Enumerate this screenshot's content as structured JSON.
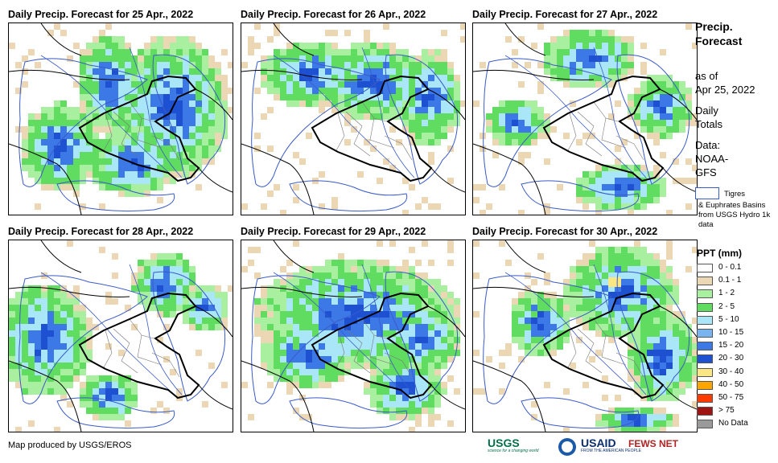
{
  "panels": [
    {
      "id": "p1",
      "title": "Daily Precip. Forecast for 25 Apr., 2022",
      "pattern": "north-east"
    },
    {
      "id": "p2",
      "title": "Daily Precip. Forecast for 26 Apr., 2022",
      "pattern": "north"
    },
    {
      "id": "p3",
      "title": "Daily Precip. Forecast for 27 Apr., 2022",
      "pattern": "sparse"
    },
    {
      "id": "p4",
      "title": "Daily Precip. Forecast for 28 Apr., 2022",
      "pattern": "west"
    },
    {
      "id": "p5",
      "title": "Daily Precip. Forecast for 29 Apr., 2022",
      "pattern": "broad"
    },
    {
      "id": "p6",
      "title": "Daily Precip. Forecast for 30 Apr., 2022",
      "pattern": "east"
    }
  ],
  "sidebar": {
    "title_line1": "Precip.",
    "title_line2": "Forecast",
    "asof_line1": "as of",
    "asof_line2": "Apr 25, 2022",
    "totals_line1": "Daily",
    "totals_line2": "Totals",
    "data_line1": "Data:",
    "data_line2": "NOAA-",
    "data_line3": "GFS"
  },
  "basin_legend": {
    "label1": "Tigres",
    "label2": "& Euphrates Basins from USGS Hydro 1k data",
    "color": "#3a5bc7"
  },
  "legend": {
    "title": "PPT (mm)",
    "classes": [
      {
        "label": "0 - 0.1",
        "color": "#ffffff"
      },
      {
        "label": "0.1 - 1",
        "color": "#ebd7b4"
      },
      {
        "label": "1 - 2",
        "color": "#a8f0a0"
      },
      {
        "label": "2 - 5",
        "color": "#60dc60"
      },
      {
        "label": "5 - 10",
        "color": "#a8e6f8"
      },
      {
        "label": "10 - 15",
        "color": "#78b4f0"
      },
      {
        "label": "15 - 20",
        "color": "#3c78e6"
      },
      {
        "label": "20 - 30",
        "color": "#1e50d2"
      },
      {
        "label": "30 - 40",
        "color": "#fae682"
      },
      {
        "label": "40 - 50",
        "color": "#ffa500"
      },
      {
        "label": "50 - 75",
        "color": "#ff3c00"
      },
      {
        "label": "> 75",
        "color": "#a01414"
      },
      {
        "label": "No Data",
        "color": "#9a9a9a"
      }
    ]
  },
  "footer": {
    "credit": "Map produced by USGS/EROS",
    "logo_usgs": "USGS",
    "logo_usgs_tag": "science for a changing world",
    "logo_usaid": "USAID",
    "logo_usaid_tag": "FROM THE AMERICAN PEOPLE",
    "logo_fews": "FEWS NET"
  }
}
